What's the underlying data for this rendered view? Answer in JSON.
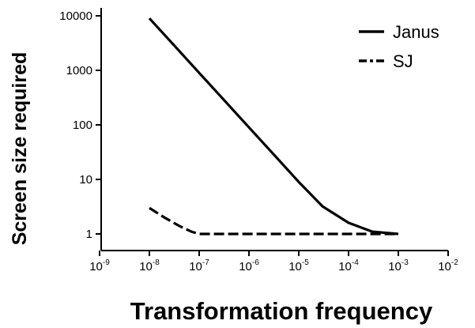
{
  "chart_data": {
    "type": "line",
    "xlabel": "Transformation frequency",
    "ylabel": "Screen size required",
    "x_scale": "log",
    "y_scale": "log",
    "xlim": [
      1e-09,
      0.01
    ],
    "ylim": [
      0.5,
      10000
    ],
    "grid": false,
    "legend_position": "top-right",
    "x_ticks": [
      {
        "base": "10",
        "exp": "-9"
      },
      {
        "base": "10",
        "exp": "-8"
      },
      {
        "base": "10",
        "exp": "-7"
      },
      {
        "base": "10",
        "exp": "-6"
      },
      {
        "base": "10",
        "exp": "-5"
      },
      {
        "base": "10",
        "exp": "-4"
      },
      {
        "base": "10",
        "exp": "-3"
      },
      {
        "base": "10",
        "exp": "-2"
      }
    ],
    "y_ticks": [
      "1",
      "10",
      "100",
      "1000",
      "10000"
    ],
    "series": [
      {
        "name": "Janus",
        "style": "solid",
        "color": "#000000",
        "x": [
          1e-08,
          3e-08,
          1e-07,
          3e-07,
          1e-06,
          3e-06,
          1e-05,
          3e-05,
          0.0001,
          0.0003,
          0.001
        ],
        "y": [
          9000,
          3000,
          900,
          300,
          90,
          30,
          9,
          3.2,
          1.6,
          1.1,
          1
        ]
      },
      {
        "name": "SJ",
        "style": "dashed",
        "color": "#000000",
        "x": [
          1e-08,
          2e-08,
          4e-08,
          7e-08,
          1e-07,
          1e-06,
          1e-05,
          0.0001,
          0.001
        ],
        "y": [
          3,
          2,
          1.4,
          1.1,
          1,
          1,
          1,
          1,
          1
        ]
      }
    ]
  }
}
